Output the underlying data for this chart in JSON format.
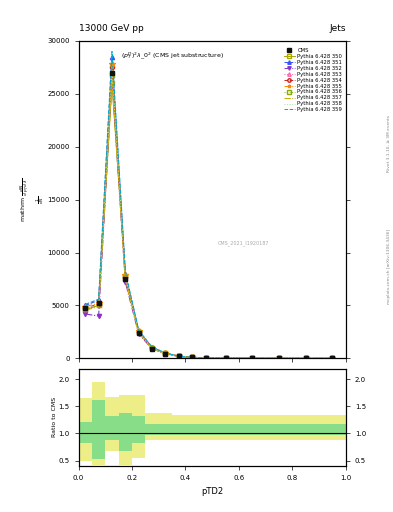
{
  "title_top": "13000 GeV pp",
  "title_right": "Jets",
  "plot_title": "$(p_T^D)^2\\lambda\\_0^2$ (CMS jet substructure)",
  "xlabel": "pTD2",
  "ylabel_ratio": "Ratio to CMS",
  "right_label_top": "Rivet 3.1.10, ≥ 3M events",
  "right_label_bot": "mcplots.cern.ch [arXiv:1306.3436]",
  "watermark": "CMS_2021_I1920187",
  "xbins": [
    0.0,
    0.05,
    0.1,
    0.15,
    0.2,
    0.25,
    0.3,
    0.35,
    0.4,
    0.45,
    0.5,
    0.6,
    0.7,
    0.8,
    0.9,
    1.0
  ],
  "ylim_main": [
    0,
    30000
  ],
  "xlim": [
    0,
    1
  ],
  "yticks_main": [
    0,
    5000,
    10000,
    15000,
    20000,
    25000,
    30000
  ],
  "ytick_labels": [
    "0",
    "5000",
    "10000",
    "15000",
    "20000",
    "25000",
    "30000"
  ],
  "ratio_ylim": [
    0.4,
    2.2
  ],
  "ratio_yticks": [
    0.5,
    1.0,
    1.5,
    2.0
  ],
  "series": [
    {
      "label": "CMS",
      "color": "#111111",
      "marker": "s",
      "marker_filled": true,
      "marker_size": 3.5,
      "line_style": "none",
      "x": [
        0.025,
        0.075,
        0.125,
        0.175,
        0.225,
        0.275,
        0.325,
        0.375,
        0.425,
        0.475,
        0.55,
        0.65,
        0.75,
        0.85,
        0.95
      ],
      "y": [
        4800,
        5200,
        27000,
        7500,
        2400,
        900,
        450,
        180,
        90,
        45,
        25,
        12,
        7,
        4,
        2
      ],
      "is_cms": true
    },
    {
      "label": "Pythia 6.428 350",
      "color": "#aaaa00",
      "marker": "s",
      "marker_filled": false,
      "marker_size": 3,
      "line_style": "-",
      "x": [
        0.025,
        0.075,
        0.125,
        0.175,
        0.225,
        0.275,
        0.325,
        0.375,
        0.425,
        0.475,
        0.55,
        0.65,
        0.75,
        0.85,
        0.95
      ],
      "y": [
        4600,
        5000,
        26000,
        7800,
        2500,
        1000,
        480,
        200,
        95,
        50,
        28,
        14,
        8,
        4.5,
        2.5
      ]
    },
    {
      "label": "Pythia 6.428 351",
      "color": "#3355ff",
      "marker": "^",
      "marker_filled": true,
      "marker_size": 3,
      "line_style": "--",
      "x": [
        0.025,
        0.075,
        0.125,
        0.175,
        0.225,
        0.275,
        0.325,
        0.375,
        0.425,
        0.475,
        0.55,
        0.65,
        0.75,
        0.85,
        0.95
      ],
      "y": [
        5000,
        5500,
        28500,
        8000,
        2600,
        1050,
        500,
        210,
        100,
        55,
        30,
        15,
        9,
        5,
        3
      ]
    },
    {
      "label": "Pythia 6.428 352",
      "color": "#8833cc",
      "marker": "v",
      "marker_filled": true,
      "marker_size": 3,
      "line_style": "-.",
      "x": [
        0.025,
        0.075,
        0.125,
        0.175,
        0.225,
        0.275,
        0.325,
        0.375,
        0.425,
        0.475,
        0.55,
        0.65,
        0.75,
        0.85,
        0.95
      ],
      "y": [
        4200,
        4000,
        26500,
        7200,
        2300,
        900,
        440,
        185,
        88,
        44,
        24,
        12,
        7,
        4,
        2
      ]
    },
    {
      "label": "Pythia 6.428 353",
      "color": "#ff66aa",
      "marker": "^",
      "marker_filled": false,
      "marker_size": 3,
      "line_style": ":",
      "x": [
        0.025,
        0.075,
        0.125,
        0.175,
        0.225,
        0.275,
        0.325,
        0.375,
        0.425,
        0.475,
        0.55,
        0.65,
        0.75,
        0.85,
        0.95
      ],
      "y": [
        4700,
        5100,
        27200,
        7600,
        2450,
        950,
        460,
        190,
        92,
        47,
        26,
        13,
        7.5,
        4.2,
        2.3
      ]
    },
    {
      "label": "Pythia 6.428 354",
      "color": "#cc2222",
      "marker": "o",
      "marker_filled": false,
      "marker_size": 3,
      "line_style": "--",
      "x": [
        0.025,
        0.075,
        0.125,
        0.175,
        0.225,
        0.275,
        0.325,
        0.375,
        0.425,
        0.475,
        0.55,
        0.65,
        0.75,
        0.85,
        0.95
      ],
      "y": [
        4750,
        5150,
        27500,
        7700,
        2480,
        970,
        470,
        195,
        94,
        48,
        27,
        13.5,
        7.8,
        4.3,
        2.4
      ]
    },
    {
      "label": "Pythia 6.428 355",
      "color": "#ff8800",
      "marker": "*",
      "marker_filled": true,
      "marker_size": 4,
      "line_style": "-.",
      "x": [
        0.025,
        0.075,
        0.125,
        0.175,
        0.225,
        0.275,
        0.325,
        0.375,
        0.425,
        0.475,
        0.55,
        0.65,
        0.75,
        0.85,
        0.95
      ],
      "y": [
        4900,
        5200,
        27800,
        7900,
        2550,
        1010,
        490,
        205,
        98,
        52,
        29,
        14.5,
        8.5,
        4.8,
        2.7
      ]
    },
    {
      "label": "Pythia 6.428 356",
      "color": "#88aa00",
      "marker": "s",
      "marker_filled": false,
      "marker_size": 3,
      "line_style": ":",
      "x": [
        0.025,
        0.075,
        0.125,
        0.175,
        0.225,
        0.275,
        0.325,
        0.375,
        0.425,
        0.475,
        0.55,
        0.65,
        0.75,
        0.85,
        0.95
      ],
      "y": [
        4650,
        5050,
        26800,
        7650,
        2460,
        960,
        465,
        192,
        91,
        46,
        25.5,
        12.8,
        7.4,
        4.1,
        2.2
      ]
    },
    {
      "label": "Pythia 6.428 357",
      "color": "#ccaa00",
      "marker": "None",
      "marker_filled": false,
      "marker_size": 3,
      "line_style": "-.",
      "x": [
        0.025,
        0.075,
        0.125,
        0.175,
        0.225,
        0.275,
        0.325,
        0.375,
        0.425,
        0.475,
        0.55,
        0.65,
        0.75,
        0.85,
        0.95
      ],
      "y": [
        4550,
        4900,
        26200,
        7400,
        2380,
        920,
        445,
        183,
        87,
        43,
        23.5,
        11.7,
        6.8,
        3.8,
        2.1
      ]
    },
    {
      "label": "Pythia 6.428 358",
      "color": "#aaddaa",
      "marker": "None",
      "marker_filled": false,
      "marker_size": 3,
      "line_style": ":",
      "x": [
        0.025,
        0.075,
        0.125,
        0.175,
        0.225,
        0.275,
        0.325,
        0.375,
        0.425,
        0.475,
        0.55,
        0.65,
        0.75,
        0.85,
        0.95
      ],
      "y": [
        4800,
        5100,
        27300,
        7700,
        2470,
        975,
        472,
        197,
        93,
        47.5,
        26.5,
        13.2,
        7.6,
        4.2,
        2.3
      ]
    },
    {
      "label": "Pythia 6.428 359",
      "color": "#00aacc",
      "marker": "None",
      "marker_filled": false,
      "marker_size": 3,
      "line_style": "--",
      "x": [
        0.025,
        0.075,
        0.125,
        0.175,
        0.225,
        0.275,
        0.325,
        0.375,
        0.425,
        0.475,
        0.55,
        0.65,
        0.75,
        0.85,
        0.95
      ],
      "y": [
        5100,
        5600,
        29000,
        8200,
        2650,
        1070,
        510,
        215,
        102,
        56,
        31,
        15.5,
        9,
        5.1,
        2.9
      ]
    }
  ],
  "ratio_yellow_lo": [
    0.5,
    0.42,
    0.68,
    0.42,
    0.55,
    0.88,
    0.88,
    0.88,
    0.88,
    0.88,
    0.88,
    0.88,
    0.88,
    0.88,
    0.88
  ],
  "ratio_yellow_hi": [
    1.65,
    1.95,
    1.68,
    1.72,
    1.72,
    1.38,
    1.38,
    1.35,
    1.35,
    1.35,
    1.35,
    1.35,
    1.35,
    1.35,
    1.35
  ],
  "ratio_green_lo": [
    0.82,
    0.52,
    0.88,
    0.68,
    0.82,
    0.98,
    0.98,
    0.98,
    0.98,
    0.98,
    0.98,
    0.98,
    0.98,
    0.98,
    0.98
  ],
  "ratio_green_hi": [
    1.22,
    1.62,
    1.32,
    1.38,
    1.32,
    1.18,
    1.18,
    1.18,
    1.18,
    1.18,
    1.18,
    1.18,
    1.18,
    1.18,
    1.18
  ]
}
